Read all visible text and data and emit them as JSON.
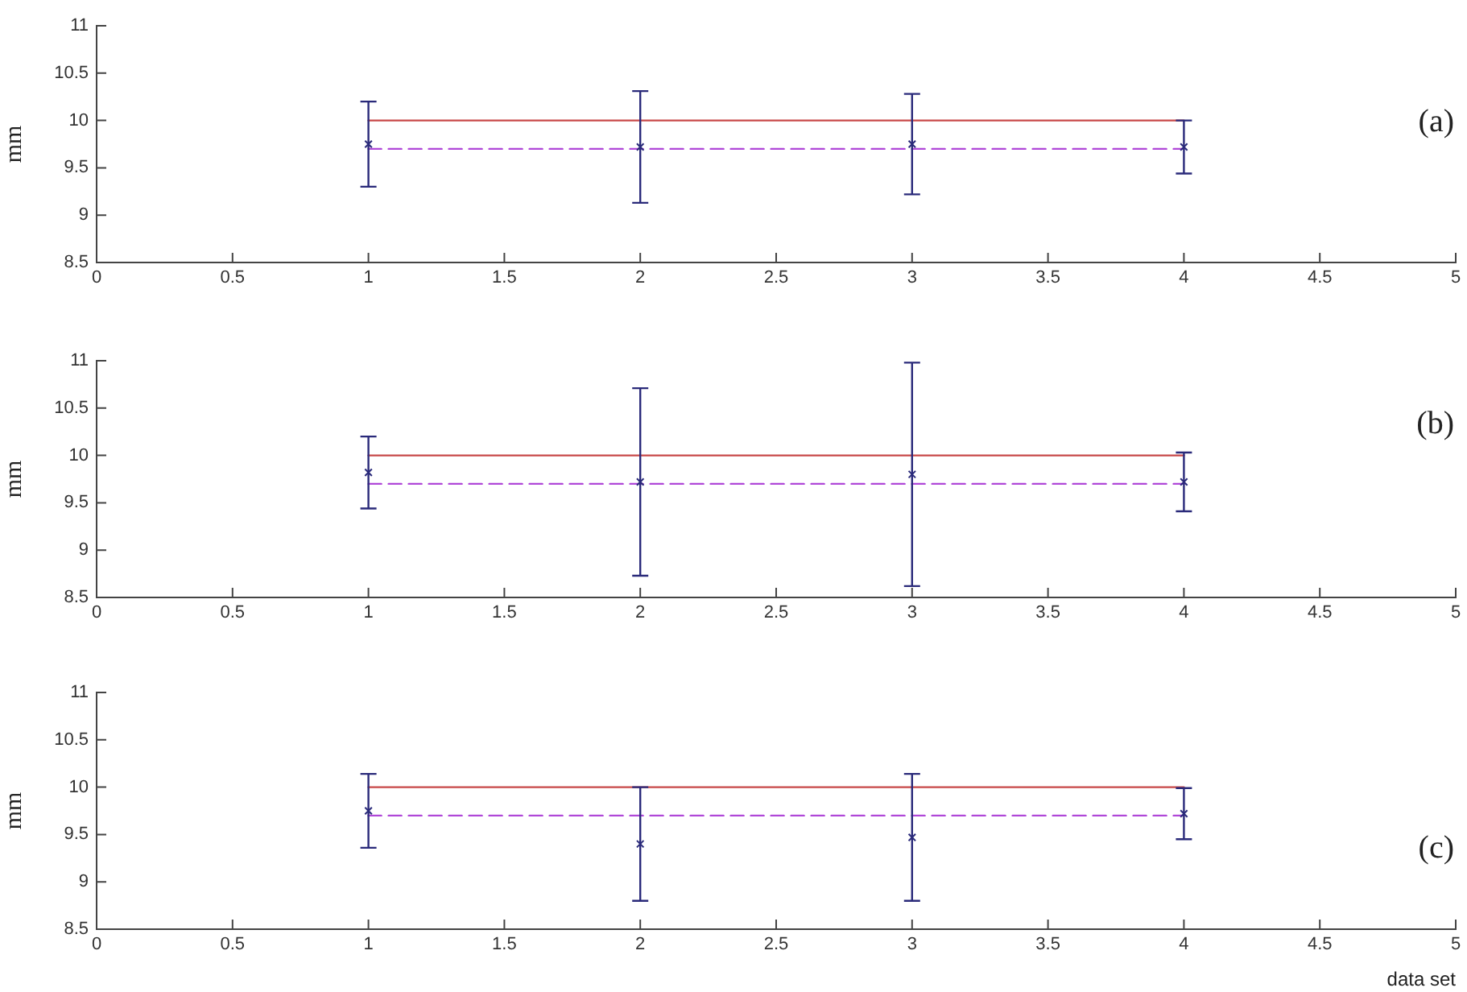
{
  "chart_data": [
    {
      "type": "scatter",
      "ylabel": "mm",
      "annotations": [
        "(a)"
      ],
      "x": [
        1,
        2,
        3,
        4
      ],
      "series": [
        {
          "type": "scatter",
          "color": "#2a2a7a",
          "marker": "cross",
          "values": [
            9.75,
            9.72,
            9.75,
            9.72
          ],
          "errors": [
            0.45,
            0.59,
            0.53,
            0.28
          ]
        },
        {
          "type": "line",
          "color": "#c84848",
          "line_style": "solid",
          "values": [
            10,
            10,
            10,
            10
          ]
        },
        {
          "type": "line",
          "color": "#b048d8",
          "line_style": "dashed",
          "values": [
            9.7,
            9.7,
            9.7,
            9.7
          ]
        }
      ],
      "xlim": [
        0,
        5
      ],
      "xticks": [
        0,
        0.5,
        1,
        1.5,
        2,
        2.5,
        3,
        3.5,
        4,
        4.5,
        5
      ],
      "ylim": [
        8.5,
        11
      ],
      "yticks": [
        8.5,
        9,
        9.5,
        10,
        10.5,
        11
      ]
    },
    {
      "type": "scatter",
      "ylabel": "mm",
      "annotations": [
        "(b)"
      ],
      "x": [
        1,
        2,
        3,
        4
      ],
      "series": [
        {
          "type": "scatter",
          "color": "#2a2a7a",
          "marker": "cross",
          "values": [
            9.82,
            9.72,
            9.8,
            9.72
          ],
          "errors": [
            0.38,
            0.99,
            1.18,
            0.31
          ]
        },
        {
          "type": "line",
          "color": "#c84848",
          "line_style": "solid",
          "values": [
            10,
            10,
            10,
            10
          ]
        },
        {
          "type": "line",
          "color": "#b048d8",
          "line_style": "dashed",
          "values": [
            9.7,
            9.7,
            9.7,
            9.7
          ]
        }
      ],
      "xlim": [
        0,
        5
      ],
      "xticks": [
        0,
        0.5,
        1,
        1.5,
        2,
        2.5,
        3,
        3.5,
        4,
        4.5,
        5
      ],
      "ylim": [
        8.5,
        11
      ],
      "yticks": [
        8.5,
        9,
        9.5,
        10,
        10.5,
        11
      ]
    },
    {
      "type": "scatter",
      "ylabel": "mm",
      "xlabel": "data set",
      "annotations": [
        "(c)"
      ],
      "x": [
        1,
        2,
        3,
        4
      ],
      "series": [
        {
          "type": "scatter",
          "color": "#2a2a7a",
          "marker": "cross",
          "values": [
            9.75,
            9.4,
            9.47,
            9.72
          ],
          "errors": [
            0.39,
            0.6,
            0.67,
            0.27
          ]
        },
        {
          "type": "line",
          "color": "#c84848",
          "line_style": "solid",
          "values": [
            10,
            10,
            10,
            10
          ]
        },
        {
          "type": "line",
          "color": "#b048d8",
          "line_style": "dashed",
          "values": [
            9.7,
            9.7,
            9.7,
            9.7
          ]
        }
      ],
      "xlim": [
        0,
        5
      ],
      "xticks": [
        0,
        0.5,
        1,
        1.5,
        2,
        2.5,
        3,
        3.5,
        4,
        4.5,
        5
      ],
      "ylim": [
        8.5,
        11
      ],
      "yticks": [
        8.5,
        9,
        9.5,
        10,
        10.5,
        11
      ]
    }
  ]
}
